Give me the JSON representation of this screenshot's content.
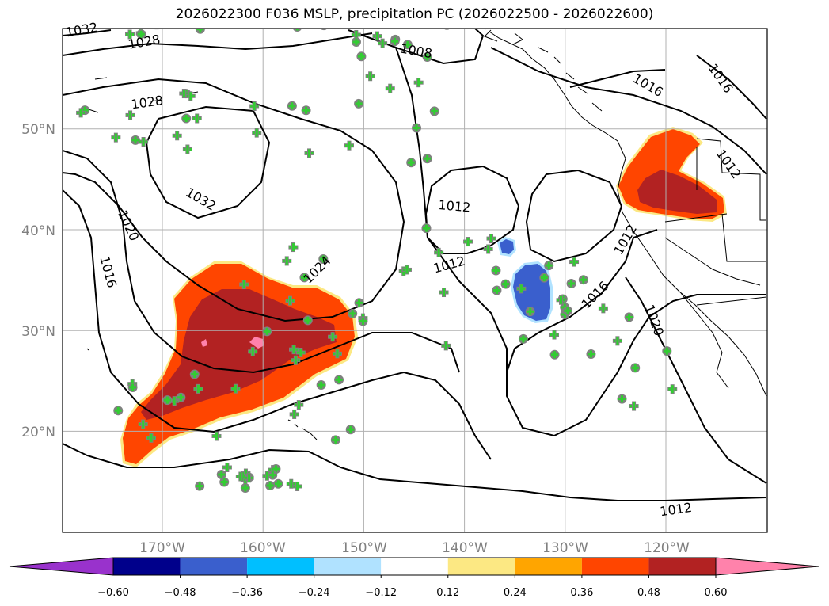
{
  "title": "2026022300 F036 MSLP, precipitation PC (2026022500 - 2026022600)",
  "lat_labels": [
    "50°N",
    "40°N",
    "30°N",
    "20°N"
  ],
  "lon_labels": [
    "170°W",
    "160°W",
    "150°W",
    "140°W",
    "130°W",
    "120°W"
  ],
  "isobar_labels": [
    {
      "text": "1032",
      "lon": -178.0,
      "lat": 59.8,
      "rot": -10
    },
    {
      "text": "1028",
      "lon": -171.8,
      "lat": 58.6,
      "rot": -10
    },
    {
      "text": "1028",
      "lon": -171.5,
      "lat": 52.6,
      "rot": -8
    },
    {
      "text": "1008",
      "lon": -144.8,
      "lat": 57.7,
      "rot": 10
    },
    {
      "text": "1016",
      "lon": -121.8,
      "lat": 54.3,
      "rot": 30
    },
    {
      "text": "1016",
      "lon": -114.6,
      "lat": 55.0,
      "rot": 55
    },
    {
      "text": "1012",
      "lon": -113.8,
      "lat": 46.5,
      "rot": 55
    },
    {
      "text": "1032",
      "lon": -166.2,
      "lat": 43.0,
      "rot": 30
    },
    {
      "text": "1012",
      "lon": -141.0,
      "lat": 42.3,
      "rot": 5
    },
    {
      "text": "1020",
      "lon": -173.4,
      "lat": 40.4,
      "rot": 65
    },
    {
      "text": "1012",
      "lon": -141.5,
      "lat": 36.5,
      "rot": -15
    },
    {
      "text": "1012",
      "lon": -124.0,
      "lat": 39.0,
      "rot": -60
    },
    {
      "text": "1016",
      "lon": -175.4,
      "lat": 35.8,
      "rot": 75
    },
    {
      "text": "1024",
      "lon": -154.6,
      "lat": 36.0,
      "rot": -45
    },
    {
      "text": "1016",
      "lon": -127.0,
      "lat": 33.5,
      "rot": -45
    },
    {
      "text": "1020",
      "lon": -121.2,
      "lat": 31.0,
      "rot": 70
    },
    {
      "text": "1012",
      "lon": -119.0,
      "lat": 12.2,
      "rot": -8
    }
  ],
  "colorbar": {
    "colors": [
      "#9932cc",
      "#00008b",
      "#3a5fcd",
      "#00bfff",
      "#b0e2ff",
      "#ffffff",
      "#fce883",
      "#ffa500",
      "#ff4500",
      "#b22222",
      "#ff82ab"
    ],
    "tick_labels": [
      "−0.60",
      "−0.48",
      "−0.36",
      "−0.24",
      "−0.12",
      "0.12",
      "0.24",
      "0.36",
      "0.48",
      "0.60"
    ]
  },
  "colors": {
    "grid": "#b0b0b0",
    "contour": "#000000",
    "marker_green": "#32cd32",
    "marker_grey": "#808080"
  }
}
